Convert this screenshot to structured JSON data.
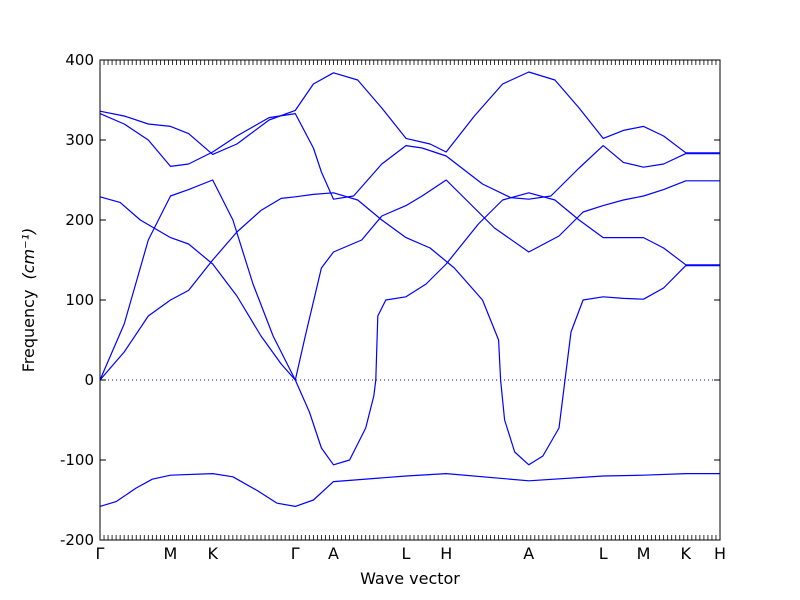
{
  "chart_data": {
    "type": "line",
    "title": "",
    "xlabel": "Wave vector",
    "ylabel": "Frequency",
    "ylabel_unit": "(cm⁻¹)",
    "ylim": [
      -200,
      400
    ],
    "yticks": [
      -200,
      -100,
      0,
      100,
      200,
      300,
      400
    ],
    "xlim": [
      0,
      15.4
    ],
    "xticks": [
      {
        "x": 0,
        "label": "Γ"
      },
      {
        "x": 1.75,
        "label": "M"
      },
      {
        "x": 2.8,
        "label": "K"
      },
      {
        "x": 4.85,
        "label": "Γ"
      },
      {
        "x": 5.8,
        "label": "A"
      },
      {
        "x": 7.6,
        "label": "L"
      },
      {
        "x": 8.6,
        "label": "H"
      },
      {
        "x": 10.65,
        "label": "A"
      },
      {
        "x": 12.5,
        "label": "L"
      },
      {
        "x": 13.5,
        "label": "M"
      },
      {
        "x": 14.55,
        "label": "K"
      },
      {
        "x": 15.4,
        "label": "H"
      }
    ],
    "zero_line": true,
    "line_color": "#0000ff",
    "series": [
      {
        "points": [
          [
            0,
            -158
          ],
          [
            0.4,
            -152
          ],
          [
            0.9,
            -135
          ],
          [
            1.3,
            -124
          ],
          [
            1.75,
            -119
          ],
          [
            2.8,
            -117
          ],
          [
            3.3,
            -121
          ],
          [
            3.9,
            -138
          ],
          [
            4.4,
            -154
          ],
          [
            4.85,
            -158
          ],
          [
            5.3,
            -150
          ],
          [
            5.8,
            -127
          ],
          [
            7.6,
            -120
          ],
          [
            8.6,
            -117
          ],
          [
            10.65,
            -126
          ],
          [
            12.5,
            -120
          ],
          [
            13.5,
            -119
          ],
          [
            14.55,
            -117
          ],
          [
            15.4,
            -117
          ]
        ]
      },
      {
        "points": [
          [
            0,
            0
          ],
          [
            0.6,
            35
          ],
          [
            1.2,
            80
          ],
          [
            1.75,
            100
          ],
          [
            2.2,
            112
          ],
          [
            2.8,
            150
          ],
          [
            3.4,
            185
          ],
          [
            4.0,
            212
          ],
          [
            4.5,
            227
          ],
          [
            4.85,
            229
          ],
          [
            5.3,
            232
          ],
          [
            5.8,
            234
          ],
          [
            6.4,
            225
          ],
          [
            7.0,
            200
          ],
          [
            7.6,
            178
          ],
          [
            8.2,
            165
          ],
          [
            8.8,
            140
          ],
          [
            9.5,
            100
          ],
          [
            9.9,
            50
          ],
          [
            9.95,
            0
          ],
          [
            10.05,
            -50
          ],
          [
            10.3,
            -90
          ],
          [
            10.65,
            -106
          ],
          [
            11.0,
            -95
          ],
          [
            11.4,
            -60
          ],
          [
            11.55,
            0
          ],
          [
            11.7,
            60
          ],
          [
            12.0,
            100
          ],
          [
            12.5,
            104
          ],
          [
            13.0,
            102
          ],
          [
            13.5,
            101
          ],
          [
            14.0,
            115
          ],
          [
            14.55,
            143
          ],
          [
            15.4,
            143
          ]
        ]
      },
      {
        "points": [
          [
            0,
            0
          ],
          [
            0.6,
            70
          ],
          [
            1.2,
            175
          ],
          [
            1.75,
            230
          ],
          [
            2.2,
            238
          ],
          [
            2.8,
            250
          ],
          [
            3.3,
            200
          ],
          [
            3.8,
            120
          ],
          [
            4.3,
            55
          ],
          [
            4.85,
            0
          ],
          [
            5.1,
            55
          ],
          [
            5.5,
            140
          ],
          [
            5.8,
            160
          ],
          [
            6.5,
            175
          ],
          [
            7.0,
            205
          ],
          [
            7.6,
            218
          ],
          [
            8.0,
            230
          ],
          [
            8.6,
            250
          ],
          [
            9.2,
            220
          ],
          [
            9.8,
            190
          ],
          [
            10.65,
            160
          ],
          [
            11.4,
            180
          ],
          [
            12.0,
            210
          ],
          [
            12.5,
            218
          ],
          [
            13.0,
            225
          ],
          [
            13.5,
            230
          ],
          [
            14.0,
            238
          ],
          [
            14.55,
            249
          ],
          [
            15.4,
            249
          ]
        ]
      },
      {
        "points": [
          [
            0,
            229
          ],
          [
            0.5,
            222
          ],
          [
            1.0,
            200
          ],
          [
            1.75,
            178
          ],
          [
            2.2,
            170
          ],
          [
            2.8,
            145
          ],
          [
            3.4,
            105
          ],
          [
            4.0,
            55
          ],
          [
            4.5,
            20
          ],
          [
            4.85,
            0
          ],
          [
            5.2,
            -40
          ],
          [
            5.5,
            -85
          ],
          [
            5.8,
            -106
          ],
          [
            6.2,
            -100
          ],
          [
            6.6,
            -60
          ],
          [
            6.8,
            -20
          ],
          [
            6.85,
            0
          ],
          [
            6.9,
            80
          ],
          [
            7.1,
            100
          ],
          [
            7.6,
            104
          ],
          [
            8.1,
            120
          ],
          [
            8.6,
            145
          ],
          [
            9.4,
            195
          ],
          [
            10.0,
            225
          ],
          [
            10.65,
            234
          ],
          [
            11.3,
            225
          ],
          [
            11.9,
            200
          ],
          [
            12.5,
            178
          ],
          [
            13.0,
            178
          ],
          [
            13.5,
            178
          ],
          [
            14.0,
            165
          ],
          [
            14.55,
            144
          ],
          [
            15.4,
            144
          ]
        ]
      },
      {
        "points": [
          [
            0,
            333
          ],
          [
            0.6,
            320
          ],
          [
            1.2,
            300
          ],
          [
            1.75,
            267
          ],
          [
            2.2,
            270
          ],
          [
            2.8,
            285
          ],
          [
            3.4,
            305
          ],
          [
            4.2,
            328
          ],
          [
            4.85,
            333
          ],
          [
            5.3,
            290
          ],
          [
            5.5,
            260
          ],
          [
            5.8,
            226
          ],
          [
            6.3,
            230
          ],
          [
            7.0,
            270
          ],
          [
            7.6,
            293
          ],
          [
            8.0,
            290
          ],
          [
            8.6,
            280
          ],
          [
            9.5,
            245
          ],
          [
            10.2,
            228
          ],
          [
            10.65,
            226
          ],
          [
            11.2,
            230
          ],
          [
            11.9,
            265
          ],
          [
            12.5,
            293
          ],
          [
            13.0,
            272
          ],
          [
            13.5,
            266
          ],
          [
            14.0,
            270
          ],
          [
            14.55,
            283
          ],
          [
            15.4,
            283
          ]
        ]
      },
      {
        "points": [
          [
            0,
            336
          ],
          [
            0.6,
            330
          ],
          [
            1.2,
            320
          ],
          [
            1.75,
            317
          ],
          [
            2.2,
            308
          ],
          [
            2.8,
            282
          ],
          [
            3.4,
            295
          ],
          [
            4.2,
            325
          ],
          [
            4.85,
            337
          ],
          [
            5.3,
            370
          ],
          [
            5.8,
            384
          ],
          [
            6.4,
            375
          ],
          [
            7.0,
            340
          ],
          [
            7.6,
            302
          ],
          [
            8.2,
            295
          ],
          [
            8.6,
            285
          ],
          [
            9.3,
            330
          ],
          [
            10.0,
            370
          ],
          [
            10.65,
            385
          ],
          [
            11.3,
            375
          ],
          [
            11.9,
            340
          ],
          [
            12.5,
            302
          ],
          [
            13.0,
            312
          ],
          [
            13.5,
            317
          ],
          [
            14.0,
            305
          ],
          [
            14.55,
            284
          ],
          [
            15.4,
            284
          ]
        ]
      }
    ]
  }
}
